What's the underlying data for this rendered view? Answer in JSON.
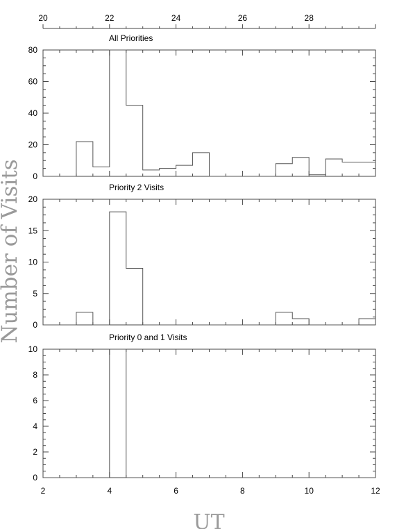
{
  "chart_data": {
    "type": "histogram",
    "ylabel": "Number of Visits",
    "xlabel": "UT",
    "x_bottom": {
      "ticks": [
        2,
        4,
        6,
        8,
        10,
        12
      ],
      "range": [
        2,
        12
      ]
    },
    "x_top": {
      "ticks": [
        20,
        22,
        24,
        26,
        28
      ],
      "offset": 18
    },
    "bin_edges": [
      2.0,
      2.5,
      3.0,
      3.5,
      4.0,
      4.5,
      5.0,
      5.5,
      6.0,
      6.5,
      7.0,
      7.5,
      8.0,
      8.5,
      9.0,
      9.5,
      10.0,
      10.5,
      11.0,
      11.5,
      12.0
    ],
    "panels": [
      {
        "title": "All Priorities",
        "ylim": [
          0,
          80
        ],
        "yticks": [
          0,
          20,
          40,
          60,
          80
        ],
        "values": [
          0,
          0,
          22,
          6,
          80,
          45,
          4,
          5,
          7,
          15,
          0,
          0,
          0,
          0,
          8,
          12,
          1,
          11,
          9,
          9
        ]
      },
      {
        "title": "Priority 2 Visits",
        "ylim": [
          0,
          20
        ],
        "yticks": [
          0,
          5,
          10,
          15,
          20
        ],
        "values": [
          0,
          0,
          2,
          0,
          18,
          9,
          0,
          0,
          0,
          0,
          0,
          0,
          0,
          0,
          2,
          1,
          0,
          0,
          0,
          1
        ]
      },
      {
        "title": "Priority 0 and 1 Visits",
        "ylim": [
          0,
          10
        ],
        "yticks": [
          0,
          2,
          4,
          6,
          8,
          10
        ],
        "values": [
          0,
          0,
          0,
          0,
          10,
          0,
          0,
          0,
          0,
          0,
          0,
          0,
          0,
          0,
          0,
          0,
          0,
          0,
          0,
          0
        ]
      }
    ]
  }
}
